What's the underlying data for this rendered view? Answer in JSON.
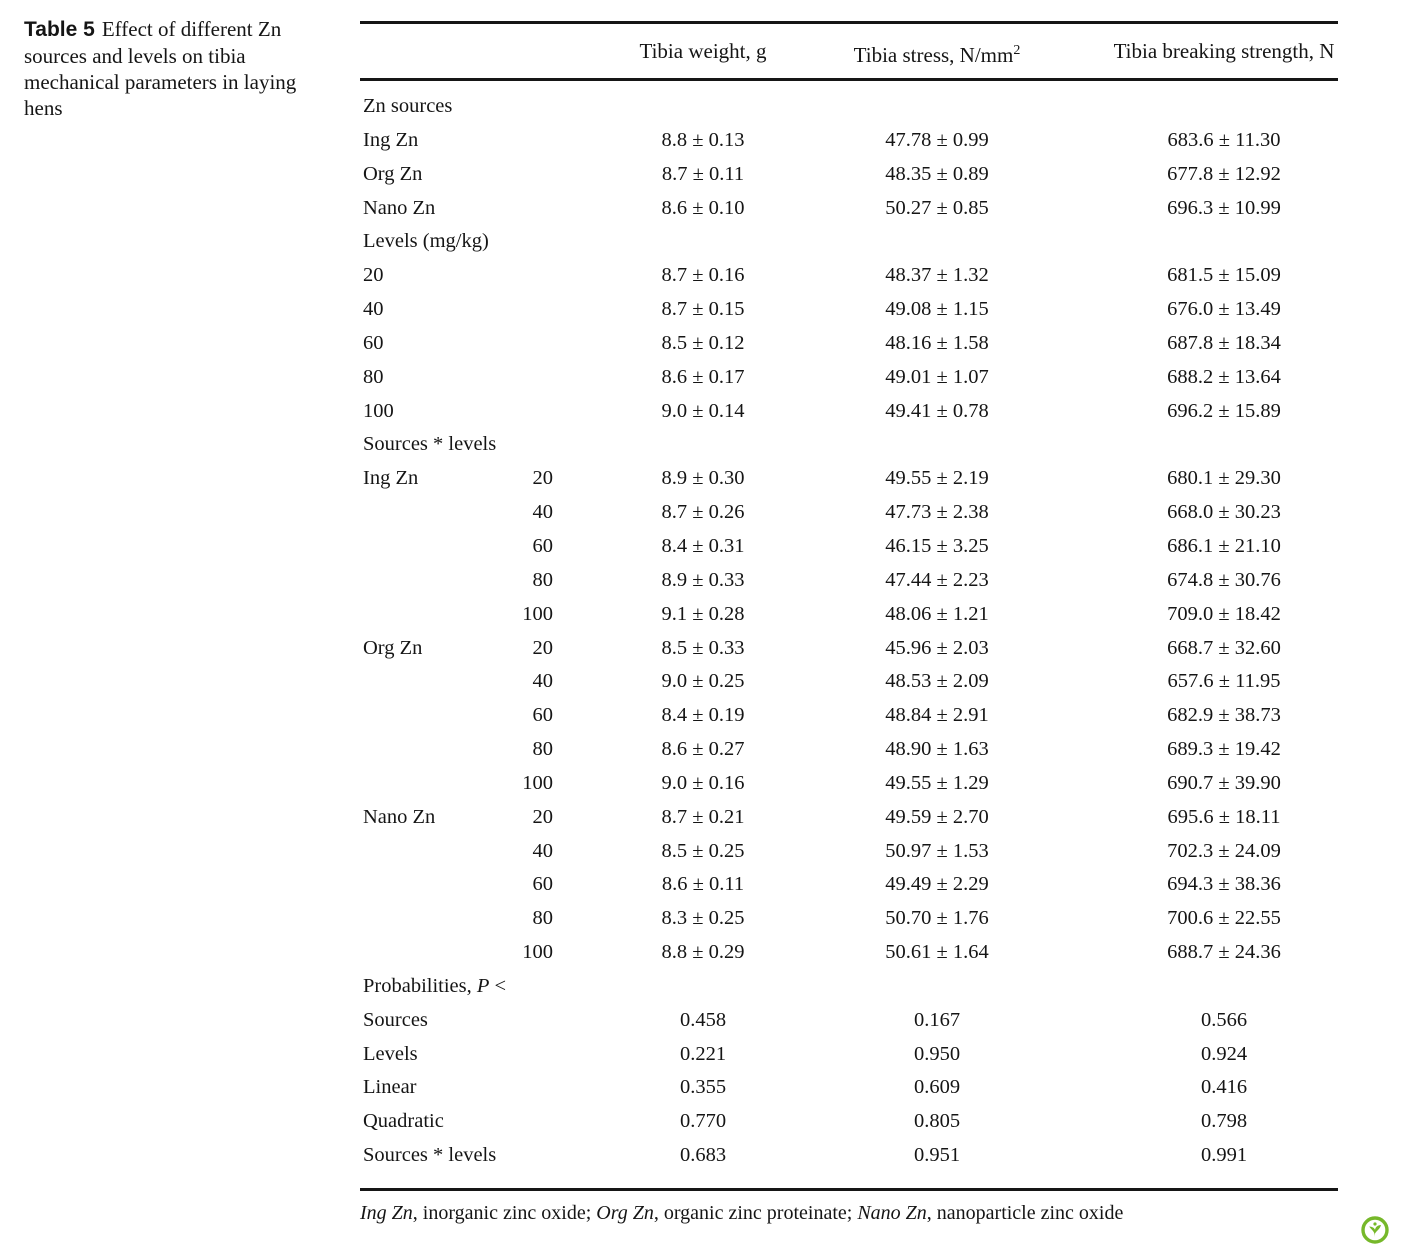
{
  "caption": {
    "label": "Table 5",
    "text": "Effect of different Zn sources and levels on tibia mechanical parameters in laying hens"
  },
  "table": {
    "columns": [
      {
        "label": "Tibia weight, g"
      },
      {
        "label": "Tibia stress, N/mm",
        "sup": "2"
      },
      {
        "label": "Tibia breaking strength, N"
      }
    ],
    "rows": [
      {
        "type": "section",
        "label": "Zn sources"
      },
      {
        "label": "Ing Zn",
        "weight": "8.8 ± 0.13",
        "stress": "47.78 ± 0.99",
        "strength": "683.6 ± 11.30"
      },
      {
        "label": "Org Zn",
        "weight": "8.7 ± 0.11",
        "stress": "48.35 ± 0.89",
        "strength": "677.8 ± 12.92"
      },
      {
        "label": "Nano Zn",
        "weight": "8.6 ± 0.10",
        "stress": "50.27 ± 0.85",
        "strength": "696.3 ± 10.99"
      },
      {
        "type": "section",
        "label": "Levels (mg/kg)"
      },
      {
        "label": "20",
        "weight": "8.7 ± 0.16",
        "stress": "48.37 ± 1.32",
        "strength": "681.5 ± 15.09"
      },
      {
        "label": "40",
        "weight": "8.7 ± 0.15",
        "stress": "49.08 ± 1.15",
        "strength": "676.0 ± 13.49"
      },
      {
        "label": "60",
        "weight": "8.5 ± 0.12",
        "stress": "48.16 ± 1.58",
        "strength": "687.8 ± 18.34"
      },
      {
        "label": "80",
        "weight": "8.6 ± 0.17",
        "stress": "49.01 ± 1.07",
        "strength": "688.2 ± 13.64"
      },
      {
        "label": "100",
        "weight": "9.0 ± 0.14",
        "stress": "49.41 ± 0.78",
        "strength": "696.2 ± 15.89"
      },
      {
        "type": "section",
        "label": "Sources * levels"
      },
      {
        "label": "Ing Zn",
        "level": "20",
        "weight": "8.9 ± 0.30",
        "stress": "49.55 ± 2.19",
        "strength": "680.1 ± 29.30"
      },
      {
        "level": "40",
        "weight": "8.7 ± 0.26",
        "stress": "47.73 ± 2.38",
        "strength": "668.0 ± 30.23"
      },
      {
        "level": "60",
        "weight": "8.4 ± 0.31",
        "stress": "46.15 ± 3.25",
        "strength": "686.1 ± 21.10"
      },
      {
        "level": "80",
        "weight": "8.9 ± 0.33",
        "stress": "47.44 ± 2.23",
        "strength": "674.8 ± 30.76"
      },
      {
        "level": "100",
        "weight": "9.1 ± 0.28",
        "stress": "48.06 ± 1.21",
        "strength": "709.0 ± 18.42"
      },
      {
        "label": "Org Zn",
        "level": "20",
        "weight": "8.5 ± 0.33",
        "stress": "45.96 ± 2.03",
        "strength": "668.7 ± 32.60"
      },
      {
        "level": "40",
        "weight": "9.0 ± 0.25",
        "stress": "48.53 ± 2.09",
        "strength": "657.6 ± 11.95"
      },
      {
        "level": "60",
        "weight": "8.4 ± 0.19",
        "stress": "48.84 ± 2.91",
        "strength": "682.9 ± 38.73"
      },
      {
        "level": "80",
        "weight": "8.6 ± 0.27",
        "stress": "48.90 ± 1.63",
        "strength": "689.3 ± 19.42"
      },
      {
        "level": "100",
        "weight": "9.0 ± 0.16",
        "stress": "49.55 ± 1.29",
        "strength": "690.7 ± 39.90"
      },
      {
        "label": "Nano Zn",
        "level": "20",
        "weight": "8.7 ± 0.21",
        "stress": "49.59 ± 2.70",
        "strength": "695.6 ± 18.11"
      },
      {
        "level": "40",
        "weight": "8.5 ± 0.25",
        "stress": "50.97 ± 1.53",
        "strength": "702.3 ± 24.09"
      },
      {
        "level": "60",
        "weight": "8.6 ± 0.11",
        "stress": "49.49 ± 2.29",
        "strength": "694.3 ± 38.36"
      },
      {
        "level": "80",
        "weight": "8.3 ± 0.25",
        "stress": "50.70 ± 1.76",
        "strength": "700.6 ± 22.55"
      },
      {
        "level": "100",
        "weight": "8.8 ± 0.29",
        "stress": "50.61 ± 1.64",
        "strength": "688.7 ± 24.36"
      },
      {
        "type": "section",
        "label_prefix": "Probabilities, ",
        "label_italic": "P",
        "label_suffix": " <"
      },
      {
        "label": "Sources",
        "weight": "0.458",
        "stress": "0.167",
        "strength": "0.566"
      },
      {
        "label": "Levels",
        "weight": "0.221",
        "stress": "0.950",
        "strength": "0.924"
      },
      {
        "label": "Linear",
        "weight": "0.355",
        "stress": "0.609",
        "strength": "0.416"
      },
      {
        "label": "Quadratic",
        "weight": "0.770",
        "stress": "0.805",
        "strength": "0.798"
      },
      {
        "label": "Sources * levels",
        "weight": "0.683",
        "stress": "0.951",
        "strength": "0.991"
      }
    ]
  },
  "footnote": {
    "segments": [
      {
        "text": "Ing Zn",
        "italic": true
      },
      {
        "text": ", inorganic zinc oxide; "
      },
      {
        "text": "Org Zn",
        "italic": true
      },
      {
        "text": ", organic zinc proteinate; "
      },
      {
        "text": "Nano Zn",
        "italic": true
      },
      {
        "text": ", nanoparticle zinc oxide"
      }
    ]
  },
  "logo": {
    "name": "plant-badge",
    "color": "#76b82a"
  }
}
